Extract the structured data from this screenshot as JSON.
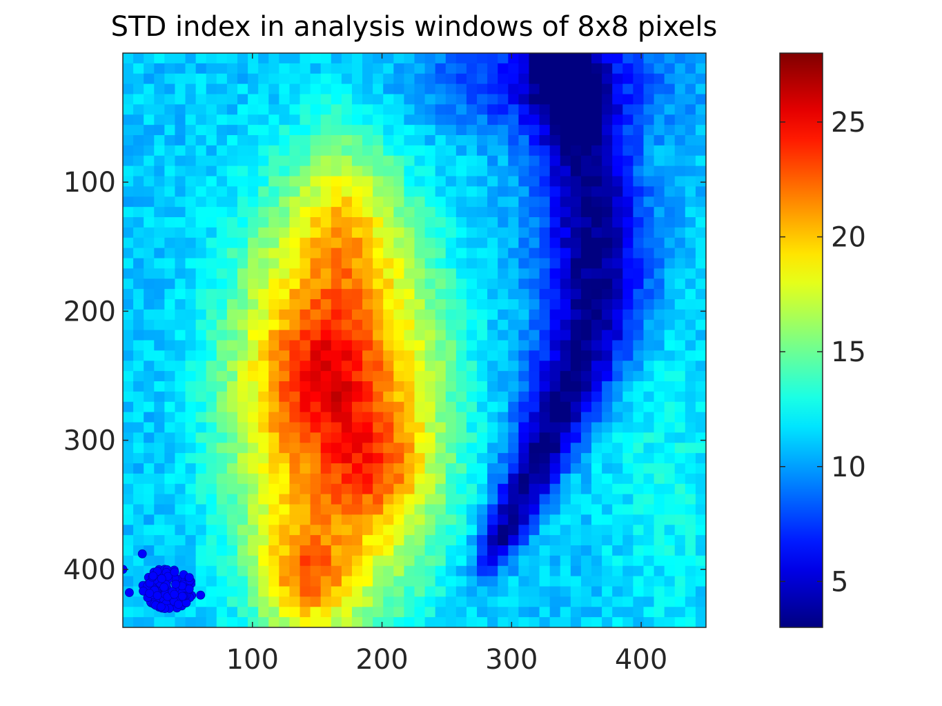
{
  "chart_data": {
    "type": "heatmap",
    "title": "STD index in analysis windows of 8x8 pixels",
    "xlabel": "",
    "ylabel": "",
    "colormap": "jet",
    "image_extent": {
      "x": [
        0,
        450
      ],
      "y": [
        0,
        445
      ]
    },
    "y_reversed": true,
    "grid_resolution": {
      "cols": 56,
      "rows": 56
    },
    "xticks": [
      100,
      200,
      300,
      400
    ],
    "xtick_labels": [
      "100",
      "200",
      "300",
      "400"
    ],
    "yticks": [
      100,
      200,
      300,
      400
    ],
    "ytick_labels": [
      "100",
      "200",
      "300",
      "400"
    ],
    "colorbar": {
      "range": [
        3,
        28
      ],
      "ticks": [
        5,
        10,
        15,
        20,
        25
      ],
      "tick_labels": [
        "5",
        "10",
        "15",
        "20",
        "25"
      ]
    },
    "background_value": 11,
    "features": [
      {
        "name": "central high-std region",
        "center_x": 165,
        "center_y": 265,
        "radius_x": 80,
        "radius_y": 170,
        "peak_value": 21
      },
      {
        "name": "upper-middle hotspot",
        "center_x": 155,
        "center_y": 250,
        "radius_x": 40,
        "radius_y": 50,
        "peak_value": 26
      },
      {
        "name": "right-middle hotspot",
        "center_x": 190,
        "center_y": 320,
        "radius_x": 40,
        "radius_y": 45,
        "peak_value": 25
      },
      {
        "name": "lower hotspot",
        "center_x": 140,
        "center_y": 410,
        "radius_x": 35,
        "radius_y": 40,
        "peak_value": 27
      },
      {
        "name": "low-std crescent band",
        "value": 4
      }
    ],
    "scatter": {
      "color": "#0000ff",
      "center_x": 35,
      "center_y": 415,
      "spread": 18,
      "count": 120,
      "extra_points": [
        [
          0,
          400
        ],
        [
          15,
          388
        ],
        [
          60,
          420
        ],
        [
          5,
          418
        ]
      ]
    }
  }
}
